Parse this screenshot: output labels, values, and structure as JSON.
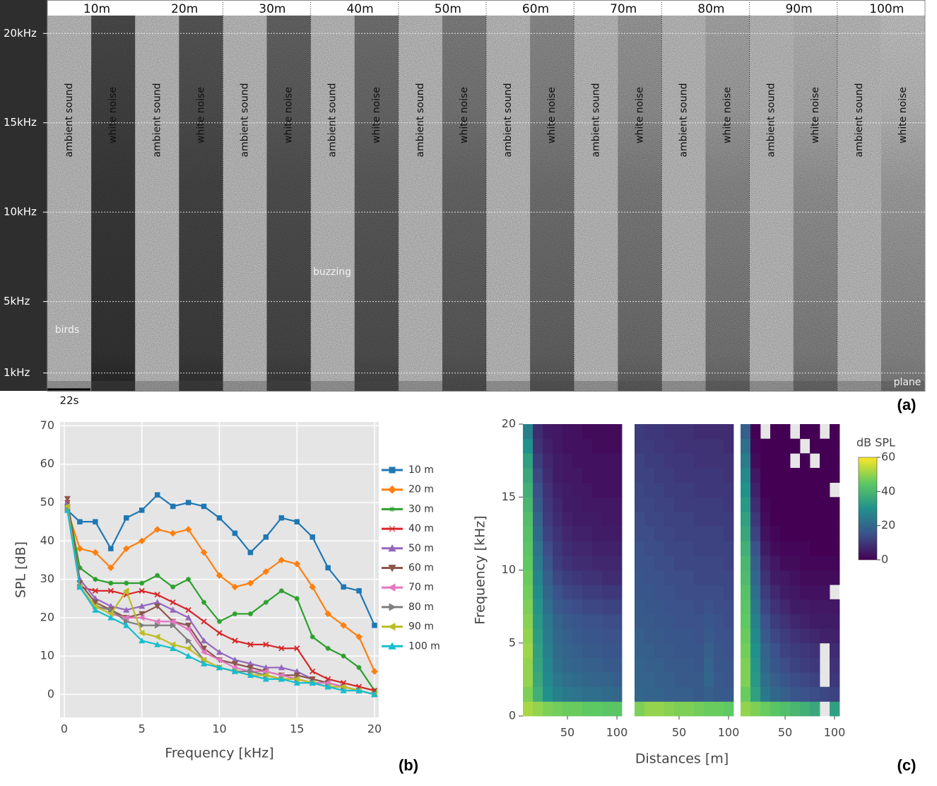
{
  "spectrogram": {
    "distances": [
      "10m",
      "20m",
      "30m",
      "40m",
      "50m",
      "60m",
      "70m",
      "80m",
      "90m",
      "100m"
    ],
    "segment_labels": [
      "ambient sound",
      "white noise"
    ],
    "ylim": [
      0,
      21
    ],
    "yticks": [
      {
        "value": 20,
        "label": "20kHz"
      },
      {
        "value": 15,
        "label": "15kHz"
      },
      {
        "value": 10,
        "label": "10kHz"
      },
      {
        "value": 5,
        "label": "5kHz"
      },
      {
        "value": 1,
        "label": "1kHz"
      }
    ],
    "annotations": [
      "birds",
      "buzzing",
      "plane"
    ],
    "scale_bar": "22s",
    "panel_label": "(a)"
  },
  "chart_data": [
    {
      "type": "line",
      "panel_label": "(b)",
      "x_label": "Frequency [kHz]",
      "y_label": "SPL [dB]",
      "x": [
        0.2,
        1,
        2,
        3,
        4,
        5,
        6,
        7,
        8,
        9,
        10,
        11,
        12,
        13,
        14,
        15,
        16,
        17,
        18,
        19,
        20
      ],
      "xlim": [
        0,
        20
      ],
      "ylim": [
        -6,
        71
      ],
      "xticks": [
        0,
        5,
        10,
        15,
        20
      ],
      "yticks": [
        0,
        10,
        20,
        30,
        40,
        50,
        60,
        70
      ],
      "grid": true,
      "legend": "right",
      "series": [
        {
          "name": "10 m",
          "color": "#1f77b4",
          "marker": "square",
          "values": [
            48,
            45,
            45,
            38,
            46,
            48,
            52,
            49,
            50,
            49,
            46,
            42,
            37,
            41,
            46,
            45,
            41,
            33,
            28,
            27,
            18
          ]
        },
        {
          "name": "20 m",
          "color": "#ff7f0e",
          "marker": "diamond",
          "values": [
            48,
            38,
            37,
            33,
            38,
            40,
            43,
            42,
            43,
            37,
            31,
            28,
            29,
            32,
            35,
            34,
            28,
            21,
            18,
            15,
            6
          ]
        },
        {
          "name": "30 m",
          "color": "#2ca02c",
          "marker": "cross",
          "values": [
            50,
            33,
            30,
            29,
            29,
            29,
            31,
            28,
            30,
            24,
            19,
            21,
            21,
            24,
            27,
            25,
            15,
            12,
            10,
            7,
            1
          ]
        },
        {
          "name": "40 m",
          "color": "#d62728",
          "marker": "x",
          "values": [
            50,
            28,
            27,
            27,
            26,
            27,
            26,
            24,
            22,
            19,
            16,
            14,
            13,
            13,
            12,
            12,
            6,
            4,
            3,
            2,
            1
          ]
        },
        {
          "name": "50 m",
          "color": "#9467bd",
          "marker": "triangle-up",
          "values": [
            50,
            30,
            25,
            23,
            22,
            23,
            24,
            22,
            20,
            14,
            11,
            9,
            8,
            7,
            7,
            6,
            4,
            3,
            2,
            1,
            0
          ]
        },
        {
          "name": "60 m",
          "color": "#8c564b",
          "marker": "triangle-down",
          "values": [
            51,
            29,
            24,
            22,
            20,
            21,
            23,
            19,
            18,
            12,
            9,
            8,
            7,
            6,
            5,
            5,
            4,
            3,
            2,
            1,
            0
          ]
        },
        {
          "name": "70 m",
          "color": "#e377c2",
          "marker": "triangle-left",
          "values": [
            49,
            28,
            23,
            21,
            20,
            20,
            19,
            19,
            17,
            11,
            9,
            7,
            6,
            6,
            5,
            4,
            3,
            3,
            2,
            1,
            0
          ]
        },
        {
          "name": "80 m",
          "color": "#7f7f7f",
          "marker": "triangle-right",
          "values": [
            49,
            28,
            23,
            22,
            19,
            18,
            18,
            18,
            14,
            9,
            7,
            6,
            6,
            5,
            4,
            4,
            3,
            2,
            2,
            1,
            0
          ]
        },
        {
          "name": "90 m",
          "color": "#bcbd22",
          "marker": "triangle-left",
          "values": [
            49,
            28,
            23,
            21,
            27,
            16,
            15,
            13,
            12,
            9,
            7,
            6,
            5,
            5,
            4,
            4,
            3,
            2,
            2,
            1,
            0
          ]
        },
        {
          "name": "100 m",
          "color": "#17becf",
          "marker": "triangle-up",
          "values": [
            48,
            28,
            22,
            20,
            18,
            14,
            13,
            12,
            10,
            8,
            7,
            6,
            5,
            4,
            4,
            3,
            3,
            2,
            1,
            1,
            0
          ]
        }
      ]
    },
    {
      "type": "heatmap",
      "panel_label": "(c)",
      "x_label": "Distances [m]",
      "y_label": "Frequency [kHz]",
      "x": [
        10,
        20,
        30,
        40,
        50,
        60,
        70,
        80,
        90,
        100
      ],
      "y": [
        0.5,
        1.5,
        2.5,
        3.5,
        4.5,
        5.5,
        6.5,
        7.5,
        8.5,
        9.5,
        10.5,
        11.5,
        12.5,
        13.5,
        14.5,
        15.5,
        16.5,
        17.5,
        18.5,
        19.5
      ],
      "xlim": [
        5,
        105
      ],
      "ylim": [
        0,
        20
      ],
      "xticks": [
        50,
        100
      ],
      "yticks": [
        0,
        5,
        10,
        15,
        20
      ],
      "colorscale": "viridis",
      "colorbar_title": "dB SPL",
      "zlim": [
        0,
        60
      ],
      "zticks": [
        0,
        20,
        40,
        60
      ],
      "panels": [
        {
          "z": [
            [
              52,
              50,
              48,
              47,
              46,
              46,
              45,
              45,
              44,
              44
            ],
            [
              48,
              38,
              30,
              26,
              24,
              23,
              22,
              22,
              21,
              20
            ],
            [
              50,
              36,
              28,
              24,
              22,
              21,
              20,
              19,
              19,
              18
            ],
            [
              50,
              35,
              27,
              22,
              20,
              19,
              18,
              18,
              17,
              17
            ],
            [
              51,
              34,
              26,
              21,
              19,
              18,
              17,
              17,
              16,
              16
            ],
            [
              50,
              33,
              25,
              20,
              18,
              17,
              16,
              16,
              15,
              15
            ],
            [
              49,
              32,
              24,
              19,
              17,
              16,
              15,
              15,
              14,
              14
            ],
            [
              48,
              31,
              22,
              17,
              15,
              14,
              13,
              13,
              12,
              12
            ],
            [
              47,
              29,
              20,
              15,
              13,
              12,
              11,
              11,
              10,
              10
            ],
            [
              46,
              27,
              18,
              13,
              11,
              10,
              9,
              9,
              8,
              8
            ],
            [
              45,
              25,
              16,
              11,
              9,
              8,
              8,
              7,
              7,
              7
            ],
            [
              44,
              23,
              14,
              10,
              8,
              7,
              7,
              6,
              6,
              6
            ],
            [
              43,
              21,
              12,
              9,
              7,
              6,
              6,
              5,
              5,
              5
            ],
            [
              42,
              19,
              11,
              8,
              6,
              5,
              5,
              5,
              4,
              4
            ],
            [
              40,
              17,
              10,
              7,
              5,
              5,
              4,
              4,
              4,
              4
            ],
            [
              38,
              15,
              9,
              6,
              5,
              4,
              4,
              3,
              3,
              3
            ],
            [
              36,
              13,
              8,
              5,
              4,
              4,
              3,
              3,
              3,
              3
            ],
            [
              34,
              11,
              7,
              5,
              4,
              3,
              3,
              3,
              3,
              3
            ],
            [
              30,
              9,
              6,
              4,
              3,
              3,
              3,
              2,
              2,
              2
            ],
            [
              26,
              8,
              5,
              4,
              3,
              3,
              2,
              2,
              2,
              2
            ]
          ]
        },
        {
          "z": [
            [
              48,
              50,
              50,
              49,
              48,
              48,
              47,
              46,
              46,
              45
            ],
            [
              20,
              19,
              19,
              18,
              18,
              18,
              17,
              18,
              17,
              17
            ],
            [
              19,
              19,
              18,
              18,
              17,
              17,
              17,
              20,
              17,
              16
            ],
            [
              19,
              18,
              18,
              17,
              17,
              17,
              16,
              19,
              16,
              16
            ],
            [
              18,
              18,
              17,
              17,
              16,
              16,
              16,
              18,
              16,
              15
            ],
            [
              18,
              17,
              17,
              16,
              16,
              16,
              15,
              17,
              15,
              15
            ],
            [
              17,
              17,
              16,
              16,
              15,
              15,
              15,
              16,
              15,
              14
            ],
            [
              17,
              16,
              16,
              15,
              15,
              15,
              14,
              15,
              14,
              14
            ],
            [
              16,
              16,
              15,
              15,
              14,
              14,
              14,
              14,
              14,
              13
            ],
            [
              16,
              15,
              15,
              14,
              14,
              14,
              13,
              13,
              13,
              13
            ],
            [
              15,
              15,
              14,
              14,
              13,
              13,
              13,
              13,
              13,
              12
            ],
            [
              15,
              14,
              14,
              13,
              13,
              13,
              12,
              12,
              12,
              12
            ],
            [
              14,
              14,
              13,
              13,
              12,
              12,
              12,
              12,
              12,
              11
            ],
            [
              14,
              13,
              13,
              12,
              12,
              12,
              11,
              11,
              11,
              11
            ],
            [
              13,
              13,
              12,
              12,
              11,
              11,
              11,
              11,
              11,
              10
            ],
            [
              13,
              12,
              12,
              11,
              11,
              11,
              10,
              10,
              10,
              10
            ],
            [
              12,
              12,
              11,
              11,
              10,
              10,
              10,
              10,
              10,
              9
            ],
            [
              12,
              11,
              11,
              10,
              10,
              10,
              9,
              9,
              9,
              9
            ],
            [
              11,
              11,
              10,
              10,
              9,
              9,
              9,
              9,
              9,
              8
            ],
            [
              11,
              10,
              10,
              9,
              9,
              9,
              8,
              8,
              8,
              8
            ]
          ]
        },
        {
          "z": [
            [
              50,
              48,
              46,
              44,
              42,
              40,
              38,
              36,
              null,
              34
            ],
            [
              46,
              34,
              24,
              20,
              18,
              16,
              15,
              14,
              13,
              12
            ],
            [
              48,
              32,
              22,
              18,
              16,
              14,
              13,
              12,
              null,
              10
            ],
            [
              48,
              31,
              20,
              16,
              14,
              12,
              11,
              10,
              null,
              9
            ],
            [
              47,
              30,
              19,
              15,
              12,
              11,
              10,
              9,
              null,
              8
            ],
            [
              46,
              28,
              17,
              13,
              11,
              9,
              8,
              7,
              6,
              6
            ],
            [
              45,
              26,
              15,
              11,
              9,
              7,
              6,
              5,
              5,
              5
            ],
            [
              44,
              24,
              13,
              9,
              7,
              5,
              5,
              4,
              4,
              4
            ],
            [
              43,
              22,
              11,
              7,
              5,
              4,
              3,
              3,
              3,
              null
            ],
            [
              41,
              20,
              9,
              5,
              4,
              3,
              2,
              2,
              2,
              2
            ],
            [
              40,
              18,
              7,
              4,
              2,
              2,
              1,
              1,
              1,
              1
            ],
            [
              38,
              15,
              5,
              2,
              1,
              1,
              1,
              0,
              0,
              0
            ],
            [
              36,
              12,
              3,
              1,
              0,
              0,
              0,
              0,
              0,
              0
            ],
            [
              34,
              10,
              2,
              0,
              0,
              0,
              0,
              0,
              0,
              0
            ],
            [
              32,
              8,
              1,
              0,
              0,
              0,
              0,
              0,
              0,
              0
            ],
            [
              30,
              6,
              0,
              0,
              0,
              0,
              0,
              0,
              0,
              null
            ],
            [
              28,
              4,
              0,
              0,
              0,
              0,
              0,
              0,
              0,
              0
            ],
            [
              25,
              2,
              0,
              0,
              0,
              null,
              0,
              null,
              0,
              0
            ],
            [
              22,
              1,
              0,
              0,
              0,
              0,
              null,
              0,
              0,
              0
            ],
            [
              18,
              0,
              null,
              0,
              0,
              null,
              0,
              0,
              null,
              0
            ]
          ]
        }
      ]
    }
  ]
}
